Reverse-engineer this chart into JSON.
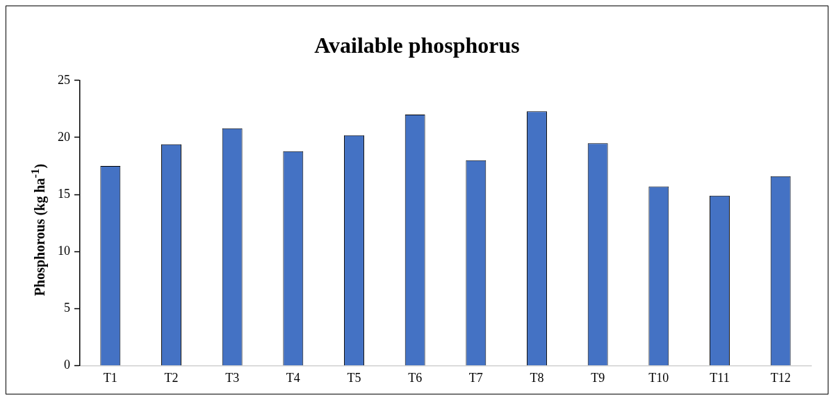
{
  "chart_data": {
    "type": "bar",
    "title": "Available phosphorus",
    "ylabel": "Phosphorous (kg ha$^{-1}$)",
    "categories": [
      "T1",
      "T2",
      "T3",
      "T4",
      "T5",
      "T6",
      "T7",
      "T8",
      "T9",
      "T10",
      "T11",
      "T12"
    ],
    "values": [
      17.5,
      19.4,
      20.8,
      18.8,
      20.2,
      22.0,
      18.0,
      22.3,
      19.5,
      15.7,
      14.9,
      16.6
    ],
    "color": "#4472c4",
    "ylim": [
      0,
      25
    ],
    "yticks": [
      0,
      5,
      10,
      15,
      20,
      25
    ],
    "grid": false,
    "legend": false
  }
}
